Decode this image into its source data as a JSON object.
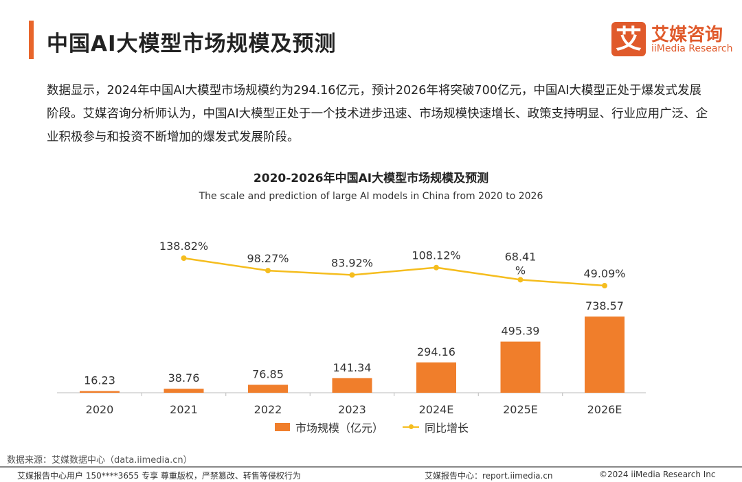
{
  "header": {
    "title": "中国AI大模型市场规模及预测",
    "accent_color": "#e8652b"
  },
  "logo": {
    "mark": "艾",
    "cn": "艾媒咨询",
    "en": "iiMedia Research",
    "color": "#e05a2b"
  },
  "paragraph": "数据显示，2024年中国AI大模型市场规模约为294.16亿元，预计2026年将突破700亿元，中国AI大模型正处于爆发式发展阶段。艾媒咨询分析师认为，中国AI大模型正处于一个技术进步迅速、市场规模快速增长、政策支持明显、行业应用广泛、企业积极参与和投资不断增加的爆发式发展阶段。",
  "chart_data": {
    "type": "bar+line",
    "title": "2020-2026年中国AI大模型市场规模及预测",
    "subtitle": "The scale and prediction of large AI models in China from 2020 to 2026",
    "categories": [
      "2020",
      "2021",
      "2022",
      "2023",
      "2024E",
      "2025E",
      "2026E"
    ],
    "series": [
      {
        "name": "市场规模（亿元）",
        "type": "bar",
        "color": "#f07e2b",
        "values": [
          16.23,
          38.76,
          76.85,
          141.34,
          294.16,
          495.39,
          738.57
        ],
        "labels": [
          "16.23",
          "38.76",
          "76.85",
          "141.34",
          "294.16",
          "495.39",
          "738.57"
        ]
      },
      {
        "name": "同比增长",
        "type": "line",
        "color": "#f5bd1e",
        "values": [
          null,
          138.82,
          98.27,
          83.92,
          108.12,
          68.41,
          49.09
        ],
        "labels": [
          "",
          "138.82%",
          "98.27%",
          "83.92%",
          "108.12%",
          "68.41\n%",
          "49.09%"
        ]
      }
    ],
    "legend": "bottom",
    "grid": false
  },
  "footer": {
    "source": "数据来源：艾媒数据中心（data.iimedia.cn）",
    "user": "艾媒报告中心用户 150****3655 专享 尊重版权，严禁篡改、转售等侵权行为",
    "site": "艾媒报告中心：report.iimedia.cn",
    "copyright": "©2024 iiMedia Research Inc"
  }
}
